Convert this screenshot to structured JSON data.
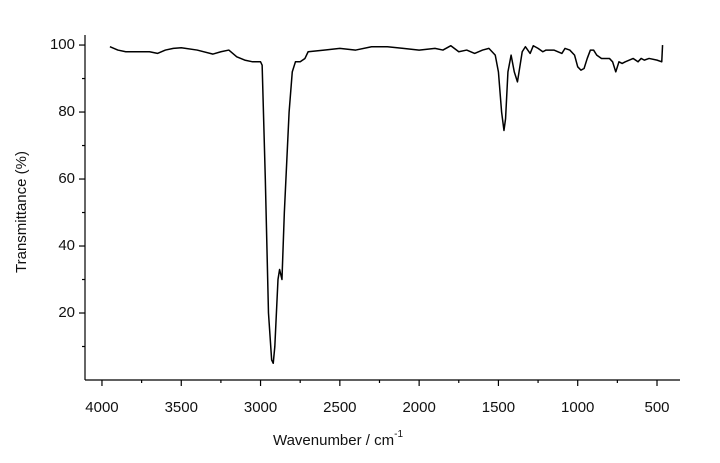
{
  "chart_data": {
    "type": "line",
    "xlabel": "Wavenumber / cm",
    "xlabel_sup": "-1",
    "ylabel": "Transmittance  (%)",
    "xlim": [
      4107,
      355
    ],
    "ylim": [
      0,
      103
    ],
    "xticks": [
      4000,
      3500,
      3000,
      2500,
      2000,
      1500,
      1000,
      500
    ],
    "xminor_ticks": [
      3750,
      3250,
      2750,
      2250,
      1750,
      1250,
      750
    ],
    "yticks": [
      20,
      40,
      60,
      80,
      100
    ],
    "yminor_ticks": [
      10,
      30,
      50,
      70,
      90
    ],
    "color": "#000000",
    "x": [
      3950,
      3900,
      3850,
      3800,
      3700,
      3650,
      3600,
      3550,
      3500,
      3400,
      3300,
      3250,
      3200,
      3150,
      3100,
      3050,
      3000,
      2990,
      2970,
      2950,
      2930,
      2920,
      2910,
      2890,
      2880,
      2865,
      2850,
      2820,
      2800,
      2780,
      2750,
      2720,
      2700,
      2600,
      2500,
      2400,
      2300,
      2200,
      2100,
      2000,
      1900,
      1850,
      1800,
      1750,
      1700,
      1650,
      1600,
      1560,
      1540,
      1520,
      1500,
      1480,
      1465,
      1455,
      1440,
      1420,
      1400,
      1380,
      1370,
      1350,
      1330,
      1300,
      1280,
      1250,
      1220,
      1200,
      1150,
      1100,
      1080,
      1050,
      1020,
      1000,
      980,
      960,
      940,
      920,
      900,
      880,
      850,
      800,
      780,
      760,
      740,
      720,
      700,
      650,
      620,
      600,
      580,
      550,
      500,
      470,
      465
    ],
    "values": [
      99.5,
      98.5,
      98,
      98,
      98,
      97.5,
      98.5,
      99,
      99.2,
      98.5,
      97.3,
      98,
      98.5,
      96.5,
      95.5,
      95,
      95,
      94,
      60,
      20,
      6,
      5,
      10,
      30,
      33,
      30,
      50,
      80,
      92,
      95,
      95,
      96,
      98,
      98.5,
      99,
      98.5,
      99.5,
      99.5,
      99,
      98.5,
      99,
      98.5,
      99.8,
      98,
      98.5,
      97.5,
      98.5,
      99,
      98,
      97,
      92,
      80,
      74.5,
      78,
      92,
      97,
      92,
      89,
      92,
      98,
      99.5,
      97.5,
      99.8,
      99,
      98,
      98.5,
      98.5,
      97.5,
      99,
      98.5,
      97,
      93.5,
      92.5,
      93,
      96,
      98.5,
      98.5,
      97,
      96,
      96,
      95,
      92,
      95,
      94.5,
      95,
      96,
      95,
      96,
      95.5,
      96,
      95.5,
      95,
      100
    ]
  }
}
